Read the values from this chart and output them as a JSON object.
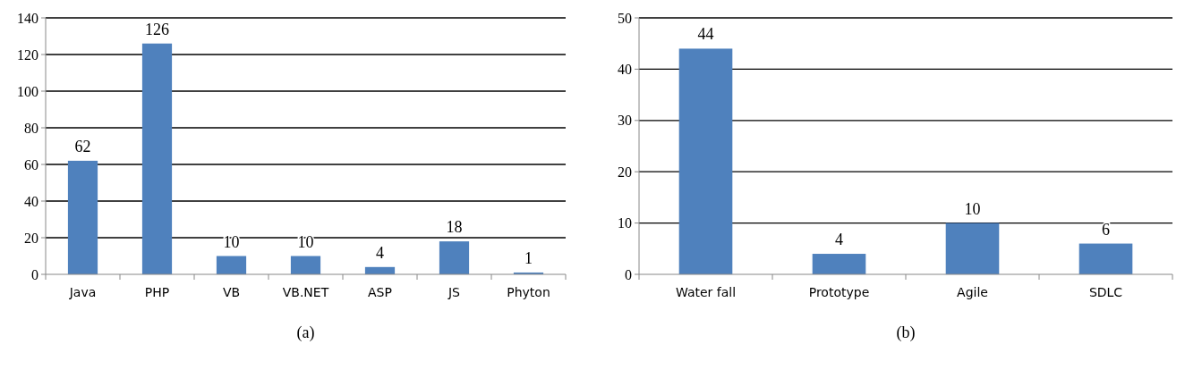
{
  "chart_data": [
    {
      "type": "bar",
      "categories": [
        "Java",
        "PHP",
        "VB",
        "VB.NET",
        "ASP",
        "JS",
        "Phyton"
      ],
      "values": [
        62,
        126,
        10,
        10,
        4,
        18,
        1
      ],
      "color": "#4f81bd",
      "ylim": [
        0,
        140
      ],
      "yticks": [
        0,
        20,
        40,
        60,
        80,
        100,
        120,
        140
      ],
      "grid": "y",
      "data_labels": true,
      "annotations": [
        "(a)"
      ]
    },
    {
      "type": "bar",
      "categories": [
        "Water fall",
        "Prototype",
        "Agile",
        "SDLC"
      ],
      "values": [
        44,
        4,
        10,
        6
      ],
      "color": "#4f81bd",
      "ylim": [
        0,
        50
      ],
      "yticks": [
        0,
        10,
        20,
        30,
        40,
        50
      ],
      "grid": "y",
      "data_labels": true,
      "annotations": [
        "(b)"
      ]
    }
  ]
}
